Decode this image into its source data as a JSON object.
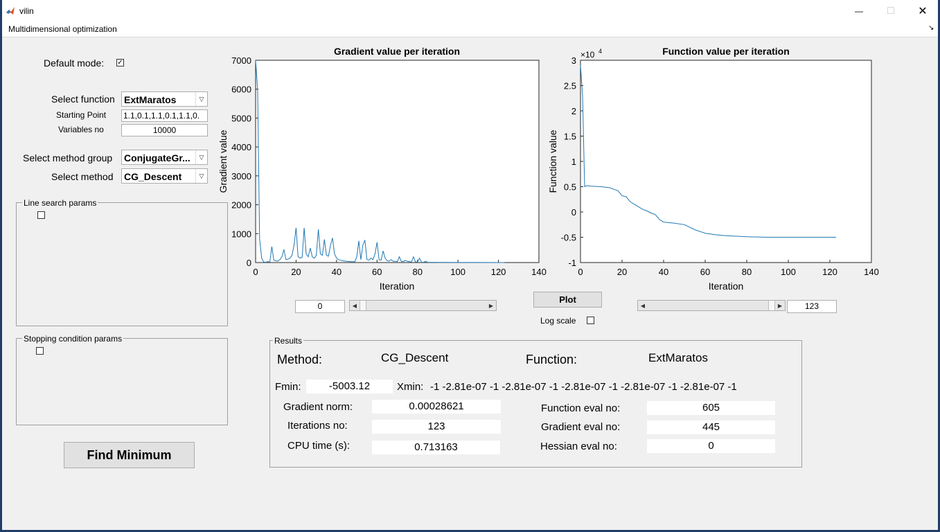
{
  "window": {
    "title": "vilin",
    "min_glyph": "—",
    "max_glyph": "□",
    "close_glyph": "✕"
  },
  "menubar": {
    "label": "Multidimensional optimization",
    "corner_glyph": "↘"
  },
  "controls": {
    "default_mode_label": "Default mode:",
    "default_mode_checked": true,
    "select_function_label": "Select function",
    "select_function_value": "ExtMaratos",
    "starting_point_label": "Starting Point",
    "starting_point_value": "1.1,0.1,1.1,0.1,1.1,0.",
    "variables_no_label": "Variables no",
    "variables_no_value": "10000",
    "select_method_group_label": "Select method group",
    "select_method_group_value": "ConjugateGr...",
    "select_method_label": "Select method",
    "select_method_value": "CG_Descent",
    "line_search_label": "Line search params",
    "stopping_condition_label": "Stopping condition params",
    "find_minimum_label": "Find Minimum"
  },
  "plot_controls": {
    "plot_button": "Plot",
    "log_scale_label": "Log scale",
    "left_slider_value": "0",
    "right_slider_value": "123",
    "left_slider_fraction": 0.0,
    "right_slider_fraction": 1.0
  },
  "results": {
    "group_label": "Results",
    "method_label": "Method:",
    "method_value": "CG_Descent",
    "function_label": "Function:",
    "function_value": "ExtMaratos",
    "fmin_label": "Fmin:",
    "fmin_value": "-5003.12",
    "xmin_label": "Xmin:",
    "xmin_value": "-1 -2.81e-07 -1 -2.81e-07 -1 -2.81e-07 -1 -2.81e-07 -1 -2.81e-07 -1",
    "gradient_norm_label": "Gradient norm:",
    "gradient_norm_value": "0.00028621",
    "iterations_label": "Iterations no:",
    "iterations_value": "123",
    "cpu_time_label": "CPU time (s):",
    "cpu_time_value": "0.713163",
    "function_eval_label": "Function eval no:",
    "function_eval_value": "605",
    "gradient_eval_label": "Gradient eval no:",
    "gradient_eval_value": "445",
    "hessian_eval_label": "Hessian  eval no:",
    "hessian_eval_value": "0"
  },
  "colors": {
    "line": "#1f77b4",
    "accent": "#0072bd"
  },
  "chart_data": [
    {
      "type": "line",
      "title": "Gradient value per iteration",
      "xlabel": "Iteration",
      "ylabel": "Gradient value",
      "xlim": [
        0,
        140
      ],
      "ylim": [
        0,
        7000
      ],
      "xticks": [
        "0",
        "20",
        "40",
        "60",
        "80",
        "100",
        "120",
        "140"
      ],
      "yticks": [
        "0",
        "1000",
        "2000",
        "3000",
        "4000",
        "5000",
        "6000",
        "7000"
      ],
      "grid": false,
      "series": [
        {
          "x": [
            0,
            1,
            2,
            3,
            4,
            5,
            6,
            7,
            8,
            9,
            10,
            11,
            12,
            13,
            14,
            15,
            16,
            17,
            18,
            19,
            20,
            21,
            22,
            23,
            24,
            25,
            26,
            27,
            28,
            29,
            30,
            31,
            32,
            33,
            34,
            35,
            36,
            37,
            38,
            39,
            40,
            41,
            42,
            43,
            44,
            45,
            46,
            47,
            48,
            49,
            50,
            51,
            52,
            53,
            54,
            55,
            56,
            57,
            58,
            59,
            60,
            61,
            62,
            63,
            64,
            65,
            66,
            67,
            68,
            69,
            70,
            71,
            72,
            73,
            74,
            75,
            76,
            77,
            78,
            79,
            80,
            81,
            82,
            83,
            84,
            85,
            90,
            100,
            110,
            123
          ],
          "y": [
            7000,
            6000,
            800,
            150,
            20,
            10,
            30,
            15,
            550,
            80,
            60,
            50,
            100,
            200,
            450,
            100,
            120,
            150,
            250,
            600,
            1200,
            200,
            150,
            180,
            1200,
            300,
            200,
            500,
            200,
            150,
            250,
            1150,
            300,
            250,
            800,
            250,
            220,
            600,
            850,
            300,
            150,
            100,
            80,
            60,
            50,
            40,
            35,
            30,
            30,
            25,
            200,
            750,
            100,
            600,
            780,
            100,
            80,
            150,
            100,
            300,
            700,
            100,
            80,
            400,
            150,
            60,
            50,
            100,
            40,
            40,
            30,
            200,
            40,
            30,
            80,
            40,
            30,
            20,
            200,
            20,
            20,
            150,
            10,
            10,
            40,
            10,
            5,
            3,
            2,
            0
          ]
        }
      ]
    },
    {
      "type": "line",
      "title": "Function value per iteration",
      "xlabel": "Iteration",
      "ylabel": "Function value",
      "axis_multiplier": "×10",
      "axis_exponent": "4",
      "xlim": [
        0,
        140
      ],
      "ylim": [
        -1,
        3
      ],
      "xticks": [
        "0",
        "20",
        "40",
        "60",
        "80",
        "100",
        "120",
        "140"
      ],
      "yticks": [
        "-1",
        "-0.5",
        "0",
        "0.5",
        "1",
        "1.5",
        "2",
        "2.5",
        "3"
      ],
      "grid": false,
      "series": [
        {
          "x": [
            0,
            1,
            2,
            3,
            5,
            10,
            14,
            16,
            18,
            20,
            22,
            24,
            26,
            28,
            30,
            32,
            34,
            36,
            38,
            40,
            45,
            50,
            55,
            60,
            65,
            70,
            80,
            90,
            100,
            110,
            123
          ],
          "y": [
            2.9,
            2.3,
            0.5,
            0.52,
            0.51,
            0.5,
            0.48,
            0.45,
            0.42,
            0.32,
            0.3,
            0.2,
            0.15,
            0.1,
            0.05,
            0.02,
            -0.02,
            -0.05,
            -0.15,
            -0.2,
            -0.22,
            -0.25,
            -0.35,
            -0.42,
            -0.45,
            -0.47,
            -0.49,
            -0.5,
            -0.5,
            -0.5,
            -0.5
          ]
        }
      ]
    }
  ]
}
